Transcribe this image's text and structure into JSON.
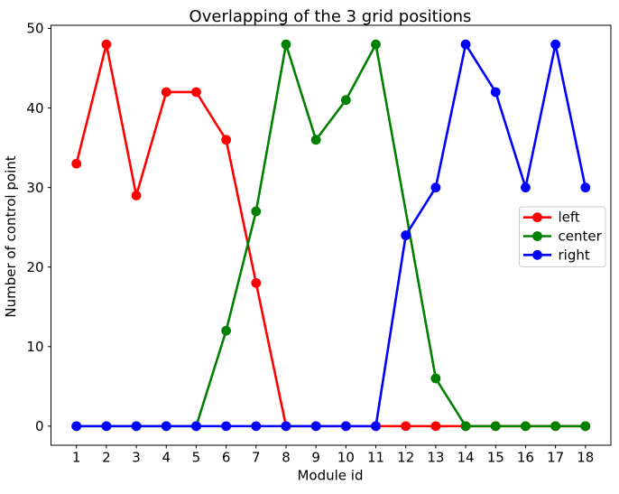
{
  "chart_data": {
    "type": "line",
    "title": "Overlapping of the 3 grid positions",
    "xlabel": "Module id",
    "ylabel": "Number of control point",
    "x": [
      1,
      2,
      3,
      4,
      5,
      6,
      7,
      8,
      9,
      10,
      11,
      12,
      13,
      14,
      15,
      16,
      17,
      18
    ],
    "series": [
      {
        "name": "left",
        "color": "#ff0000",
        "values": [
          33,
          48,
          29,
          42,
          42,
          36,
          18,
          0,
          0,
          0,
          0,
          0,
          0,
          0,
          0,
          0,
          0,
          0
        ],
        "no_marker_at_x": []
      },
      {
        "name": "center",
        "color": "#008000",
        "values": [
          0,
          0,
          0,
          0,
          0,
          12,
          27,
          48,
          36,
          41,
          48,
          27,
          6,
          0,
          0,
          0,
          0,
          0
        ],
        "no_marker_at_x": [
          12
        ]
      },
      {
        "name": "right",
        "color": "#0000ff",
        "values": [
          0,
          0,
          0,
          0,
          0,
          0,
          0,
          0,
          0,
          0,
          0,
          24,
          30,
          48,
          42,
          30,
          48,
          30
        ],
        "no_marker_at_x": []
      }
    ],
    "xticks": [
      1,
      2,
      3,
      4,
      5,
      6,
      7,
      8,
      9,
      10,
      11,
      12,
      13,
      14,
      15,
      16,
      17,
      18
    ],
    "yticks": [
      0,
      10,
      20,
      30,
      40,
      50
    ],
    "xlim": [
      0.15,
      18.85
    ],
    "ylim": [
      -2.4,
      50.4
    ],
    "grid": false,
    "legend": {
      "position": "center-right",
      "entries": [
        "left",
        "center",
        "right"
      ],
      "border_color": "#cccccc",
      "background": "#ffffff"
    },
    "axis_color": "#000000"
  }
}
